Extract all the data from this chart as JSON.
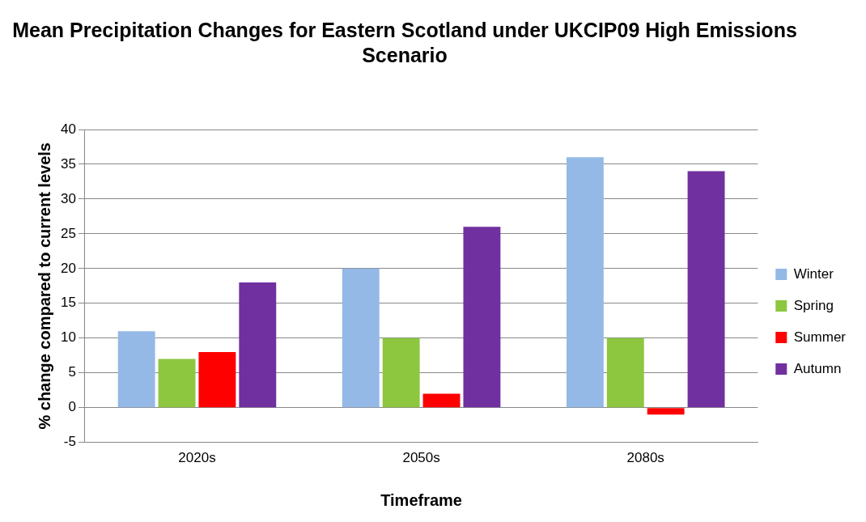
{
  "chart_data": {
    "type": "bar",
    "title": "Mean Precipitation Changes for Eastern Scotland under UKCIP09 High Emissions Scenario",
    "xlabel": "Timeframe",
    "ylabel": "% change compared to current levels",
    "categories": [
      "2020s",
      "2050s",
      "2080s"
    ],
    "series": [
      {
        "name": "Winter",
        "color": "#95b9e6",
        "values": [
          11,
          20,
          36
        ]
      },
      {
        "name": "Spring",
        "color": "#8dc63f",
        "values": [
          7,
          10,
          10
        ]
      },
      {
        "name": "Summer",
        "color": "#ff0000",
        "values": [
          8,
          2,
          -1
        ]
      },
      {
        "name": "Autumn",
        "color": "#7030a0",
        "values": [
          18,
          26,
          34
        ]
      }
    ],
    "ylim": [
      -5,
      40
    ],
    "yticks": [
      -5,
      0,
      5,
      10,
      15,
      20,
      25,
      30,
      35,
      40
    ],
    "grid": "y",
    "legend": "right"
  }
}
